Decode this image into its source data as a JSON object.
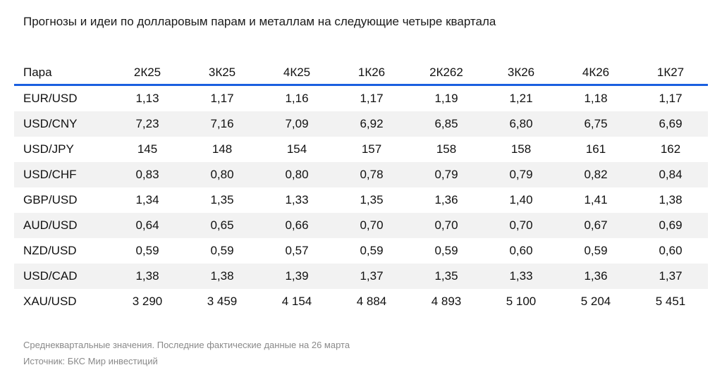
{
  "title": "Прогнозы и идеи по долларовым парам и металлам на следующие четыре квартала",
  "colors": {
    "header_rule": "#1a5fe0",
    "stripe": "#f2f2f2"
  },
  "chart_data": {
    "type": "table",
    "columns": [
      "Пара",
      "2К25",
      "3К25",
      "4К25",
      "1К26",
      "2К262",
      "3К26",
      "4К26",
      "1К27"
    ],
    "rows": [
      [
        "EUR/USD",
        "1,13",
        "1,17",
        "1,16",
        "1,17",
        "1,19",
        "1,21",
        "1,18",
        "1,17"
      ],
      [
        "USD/CNY",
        "7,23",
        "7,16",
        "7,09",
        "6,92",
        "6,85",
        "6,80",
        "6,75",
        "6,69"
      ],
      [
        "USD/JPY",
        "145",
        "148",
        "154",
        "157",
        "158",
        "158",
        "161",
        "162"
      ],
      [
        "USD/CHF",
        "0,83",
        "0,80",
        "0,80",
        "0,78",
        "0,79",
        "0,79",
        "0,82",
        "0,84"
      ],
      [
        "GBP/USD",
        "1,34",
        "1,35",
        "1,33",
        "1,35",
        "1,36",
        "1,40",
        "1,41",
        "1,38"
      ],
      [
        "AUD/USD",
        "0,64",
        "0,65",
        "0,66",
        "0,70",
        "0,70",
        "0,70",
        "0,67",
        "0,69"
      ],
      [
        "NZD/USD",
        "0,59",
        "0,59",
        "0,57",
        "0,59",
        "0,59",
        "0,60",
        "0,59",
        "0,60"
      ],
      [
        "USD/CAD",
        "1,38",
        "1,38",
        "1,39",
        "1,37",
        "1,35",
        "1,33",
        "1,36",
        "1,37"
      ],
      [
        "XAU/USD",
        "3 290",
        "3 459",
        "4 154",
        "4 884",
        "4 893",
        "5 100",
        "5 204",
        "5 451"
      ]
    ]
  },
  "notes": {
    "footnote": "Среднеквартальные значения. Последние фактические данные на 26 марта",
    "source": "Источник: БКС Мир инвестиций"
  }
}
